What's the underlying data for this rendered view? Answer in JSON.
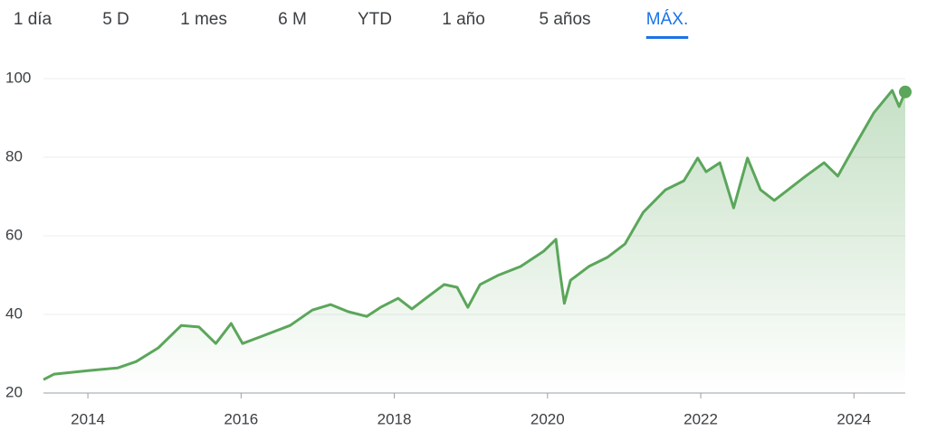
{
  "tabs": [
    "1 día",
    "5 D",
    "1 mes",
    "6 M",
    "YTD",
    "1 año",
    "5 años",
    "MÁX."
  ],
  "selected_tab": 7,
  "chart_data": {
    "type": "line",
    "x": [
      2013.42,
      2013.56,
      2014.0,
      2014.39,
      2014.63,
      2014.92,
      2015.22,
      2015.45,
      2015.67,
      2015.87,
      2016.02,
      2016.28,
      2016.64,
      2016.93,
      2017.17,
      2017.4,
      2017.64,
      2017.82,
      2018.05,
      2018.23,
      2018.41,
      2018.65,
      2018.82,
      2018.96,
      2019.12,
      2019.35,
      2019.65,
      2019.95,
      2020.11,
      2020.16,
      2020.22,
      2020.3,
      2020.54,
      2020.78,
      2021.01,
      2021.25,
      2021.54,
      2021.78,
      2021.96,
      2022.07,
      2022.25,
      2022.43,
      2022.61,
      2022.78,
      2022.96,
      2023.14,
      2023.37,
      2023.61,
      2023.79,
      2024.02,
      2024.26,
      2024.5,
      2024.59,
      2024.67
    ],
    "series": [
      {
        "color": "#5ba65b",
        "values": [
          23.4,
          24.8,
          25.7,
          26.4,
          28,
          31.5,
          37.2,
          36.8,
          32.6,
          37.7,
          32.6,
          34.5,
          37.2,
          41.1,
          42.5,
          40.7,
          39.5,
          41.8,
          44.1,
          41.4,
          44.1,
          47.6,
          46.9,
          41.8,
          47.6,
          49.9,
          52.2,
          56.1,
          59.1,
          51,
          42.8,
          48.7,
          52.2,
          54.5,
          57.9,
          66,
          71.7,
          74,
          79.8,
          76.3,
          78.6,
          67.1,
          79.8,
          71.7,
          69,
          71.7,
          75.2,
          78.6,
          75.2,
          83.2,
          91.3,
          97,
          92.9,
          96.6
        ]
      }
    ],
    "xlim": [
      2013.42,
      2024.67
    ],
    "xticks": [
      2014,
      2016,
      2018,
      2020,
      2022,
      2024
    ],
    "ylim": [
      20,
      100
    ],
    "yticks": [
      20,
      40,
      60,
      80,
      100
    ],
    "grid": true
  }
}
